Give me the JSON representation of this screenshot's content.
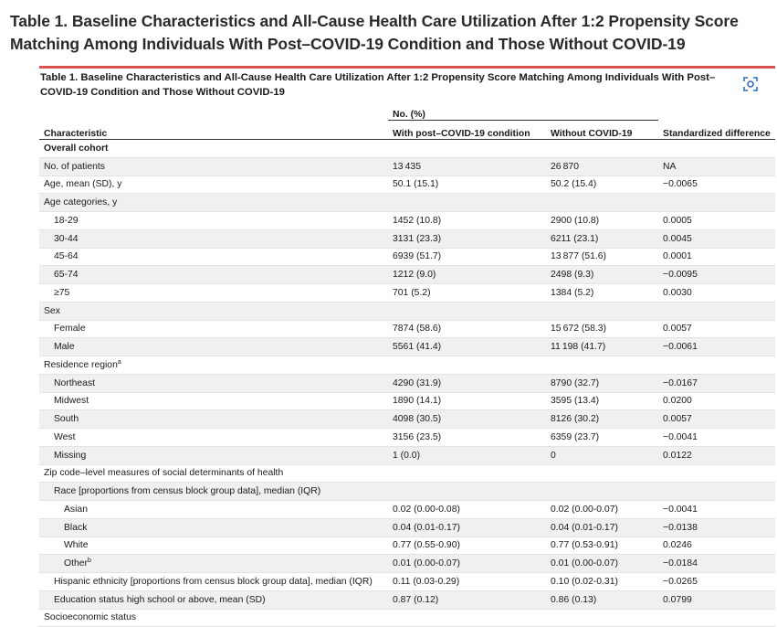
{
  "page": {
    "heading": "Table 1.  Baseline Characteristics and All-Cause Health Care Utilization After 1:2 Propensity Score Matching Among Individuals With Post–COVID-19 Condition and Those Without COVID-19"
  },
  "table": {
    "caption": "Table 1. Baseline Characteristics and All-Cause Health Care Utilization After 1:2 Propensity Score Matching Among Individuals With Post–COVID-19 Condition and Those Without COVID-19",
    "expand_icon": "expand-viewfinder-icon",
    "accent_color": "#d9534f",
    "group_header": "No. (%)",
    "headers": [
      "Characteristic",
      "With post–COVID-19 condition",
      "Without COVID-19",
      "Standardized difference"
    ],
    "rows": [
      {
        "label": "Overall cohort",
        "sup": "",
        "indent": 0,
        "section": true,
        "values": [
          "",
          "",
          ""
        ]
      },
      {
        "label": "No. of patients",
        "sup": "",
        "indent": 0,
        "section": false,
        "values": [
          "13 435",
          "26 870",
          "NA"
        ]
      },
      {
        "label": "Age, mean (SD), y",
        "sup": "",
        "indent": 0,
        "section": false,
        "values": [
          "50.1 (15.1)",
          "50.2 (15.4)",
          "−0.0065"
        ]
      },
      {
        "label": "Age categories, y",
        "sup": "",
        "indent": 0,
        "section": false,
        "values": [
          "",
          "",
          ""
        ]
      },
      {
        "label": "18-29",
        "sup": "",
        "indent": 1,
        "section": false,
        "values": [
          "1452 (10.8)",
          "2900 (10.8)",
          "0.0005"
        ]
      },
      {
        "label": "30-44",
        "sup": "",
        "indent": 1,
        "section": false,
        "values": [
          "3131 (23.3)",
          "6211 (23.1)",
          "0.0045"
        ]
      },
      {
        "label": "45-64",
        "sup": "",
        "indent": 1,
        "section": false,
        "values": [
          "6939 (51.7)",
          "13 877 (51.6)",
          "0.0001"
        ]
      },
      {
        "label": "65-74",
        "sup": "",
        "indent": 1,
        "section": false,
        "values": [
          "1212 (9.0)",
          "2498 (9.3)",
          "−0.0095"
        ]
      },
      {
        "label": "≥75",
        "sup": "",
        "indent": 1,
        "section": false,
        "values": [
          "701 (5.2)",
          "1384 (5.2)",
          "0.0030"
        ]
      },
      {
        "label": "Sex",
        "sup": "",
        "indent": 0,
        "section": false,
        "values": [
          "",
          "",
          ""
        ]
      },
      {
        "label": "Female",
        "sup": "",
        "indent": 1,
        "section": false,
        "values": [
          "7874 (58.6)",
          "15 672 (58.3)",
          "0.0057"
        ]
      },
      {
        "label": "Male",
        "sup": "",
        "indent": 1,
        "section": false,
        "values": [
          "5561 (41.4)",
          "11 198 (41.7)",
          "−0.0061"
        ]
      },
      {
        "label": "Residence region",
        "sup": "a",
        "indent": 0,
        "section": false,
        "values": [
          "",
          "",
          ""
        ]
      },
      {
        "label": "Northeast",
        "sup": "",
        "indent": 1,
        "section": false,
        "values": [
          "4290 (31.9)",
          "8790 (32.7)",
          "−0.0167"
        ]
      },
      {
        "label": "Midwest",
        "sup": "",
        "indent": 1,
        "section": false,
        "values": [
          "1890 (14.1)",
          "3595 (13.4)",
          "0.0200"
        ]
      },
      {
        "label": "South",
        "sup": "",
        "indent": 1,
        "section": false,
        "values": [
          "4098 (30.5)",
          "8126 (30.2)",
          "0.0057"
        ]
      },
      {
        "label": "West",
        "sup": "",
        "indent": 1,
        "section": false,
        "values": [
          "3156 (23.5)",
          "6359 (23.7)",
          "−0.0041"
        ]
      },
      {
        "label": "Missing",
        "sup": "",
        "indent": 1,
        "section": false,
        "values": [
          "1 (0.0)",
          "0",
          "0.0122"
        ]
      },
      {
        "label": "Zip code–level measures of social determinants of health",
        "sup": "",
        "indent": 0,
        "section": false,
        "values": [
          "",
          "",
          ""
        ]
      },
      {
        "label": "Race [proportions from census block group data], median (IQR)",
        "sup": "",
        "indent": 1,
        "section": false,
        "values": [
          "",
          "",
          ""
        ]
      },
      {
        "label": "Asian",
        "sup": "",
        "indent": 2,
        "section": false,
        "values": [
          "0.02 (0.00-0.08)",
          "0.02 (0.00-0.07)",
          "−0.0041"
        ]
      },
      {
        "label": "Black",
        "sup": "",
        "indent": 2,
        "section": false,
        "values": [
          "0.04 (0.01-0.17)",
          "0.04 (0.01-0.17)",
          "−0.0138"
        ]
      },
      {
        "label": "White",
        "sup": "",
        "indent": 2,
        "section": false,
        "values": [
          "0.77 (0.55-0.90)",
          "0.77 (0.53-0.91)",
          "0.0246"
        ]
      },
      {
        "label": "Other",
        "sup": "b",
        "indent": 2,
        "section": false,
        "values": [
          "0.01 (0.00-0.07)",
          "0.01 (0.00-0.07)",
          "−0.0184"
        ]
      },
      {
        "label": "Hispanic ethnicity [proportions from census block group data], median (IQR)",
        "sup": "",
        "indent": 1,
        "section": false,
        "values": [
          "0.11 (0.03-0.29)",
          "0.10 (0.02-0.31)",
          "−0.0265"
        ]
      },
      {
        "label": "Education status high school or above, mean (SD)",
        "sup": "",
        "indent": 1,
        "section": false,
        "values": [
          "0.87 (0.12)",
          "0.86 (0.13)",
          "0.0799"
        ]
      },
      {
        "label": "Socioeconomic status",
        "sup": "",
        "indent": 0,
        "section": false,
        "values": [
          "",
          "",
          ""
        ]
      }
    ]
  }
}
